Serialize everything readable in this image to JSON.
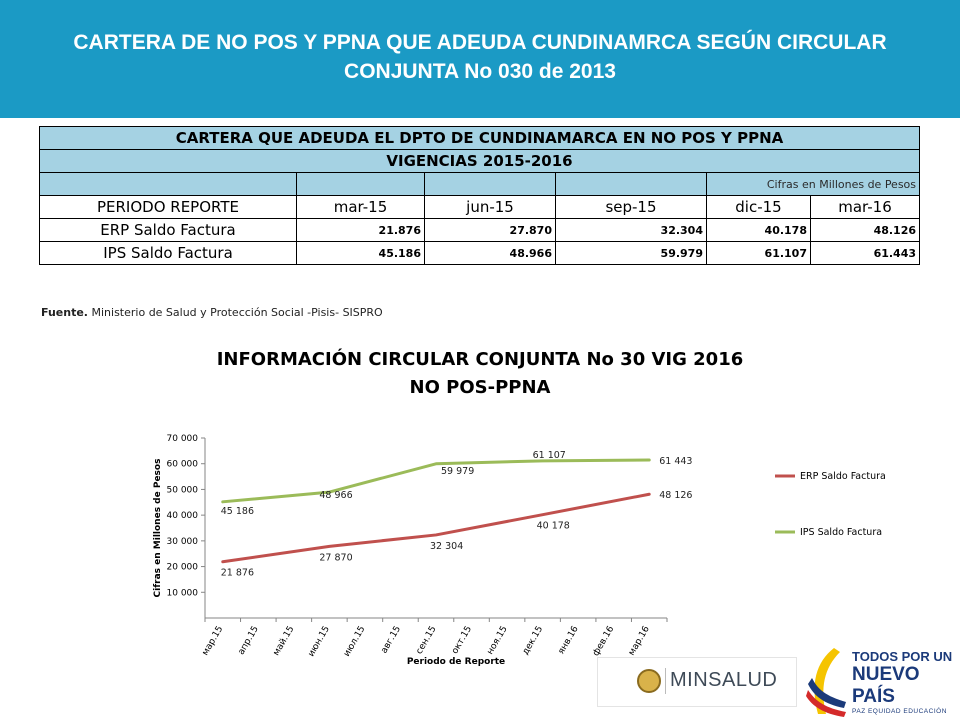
{
  "header": {
    "title_line1": "CARTERA DE NO POS Y PPNA QUE ADEUDA CUNDINAMRCA SEGÚN CIRCULAR",
    "title_line2": "CONJUNTA No 030 de 2013",
    "color": "#1b9ac5"
  },
  "table": {
    "title": "CARTERA QUE ADEUDA EL DPTO DE CUNDINAMARCA EN NO POS Y PPNA",
    "subtitle": "VIGENCIAS 2015-2016",
    "units_note": "Cifras en Millones de Pesos",
    "header_fill": "#a5d2e3",
    "columns": [
      "PERIODO REPORTE",
      "mar-15",
      "jun-15",
      "sep-15",
      "dic-15",
      "mar-16"
    ],
    "rows": [
      {
        "label": "ERP Saldo Factura",
        "values": [
          "21.876",
          "27.870",
          "32.304",
          "40.178",
          "48.126"
        ]
      },
      {
        "label": "IPS Saldo Factura",
        "values": [
          "45.186",
          "48.966",
          "59.979",
          "61.107",
          "61.443"
        ]
      }
    ],
    "source_label": "Fuente.",
    "source_text": " Ministerio de Salud y Protección Social -Pisis- SISPRO"
  },
  "chart_title": {
    "line1": "INFORMACIÓN CIRCULAR CONJUNTA No 30 VIG 2016",
    "line2": "NO POS-PPNA"
  },
  "chart_data": {
    "type": "line",
    "x": [
      "мар.15",
      "апр.15",
      "май.15",
      "июн.15",
      "июл.15",
      "авг.15",
      "сен.15",
      "окт.15",
      "ноя.15",
      "дек.15",
      "янв.16",
      "фев.16",
      "мар.16"
    ],
    "xlabel": "Periodo de Reporte",
    "ylabel": "Cifras en Millones de Pesos",
    "ylim": [
      0,
      70000
    ],
    "yticks": [
      "10 000",
      "20 000",
      "30 000",
      "40 000",
      "50 000",
      "60 000",
      "70 000"
    ],
    "ytick_values": [
      10000,
      20000,
      30000,
      40000,
      50000,
      60000,
      70000
    ],
    "legend_position": "right",
    "series": [
      {
        "name": "ERP Saldo Factura",
        "color": "#c0504d",
        "points": [
          {
            "x": 0,
            "y": 21876
          },
          {
            "x": 3,
            "y": 27870
          },
          {
            "x": 6,
            "y": 32304
          },
          {
            "x": 9,
            "y": 40178
          },
          {
            "x": 12,
            "y": 48126
          }
        ],
        "labels": [
          "21 876",
          "27 870",
          "32 304",
          "40 178",
          "48 126"
        ]
      },
      {
        "name": "IPS Saldo Factura",
        "color": "#9bbb59",
        "points": [
          {
            "x": 0,
            "y": 45186
          },
          {
            "x": 3,
            "y": 48966
          },
          {
            "x": 6,
            "y": 59979
          },
          {
            "x": 9,
            "y": 61107
          },
          {
            "x": 12,
            "y": 61443
          }
        ],
        "labels": [
          "45 186",
          "48 966",
          "59 979",
          "61 107",
          "61 443"
        ]
      }
    ]
  },
  "logos": {
    "minsalud": "MINSALUD",
    "tpun_line1": "TODOS POR UN",
    "tpun_line2": "NUEVO PAÍS",
    "tpun_line3": "PAZ  EQUIDAD  EDUCACIÓN"
  }
}
